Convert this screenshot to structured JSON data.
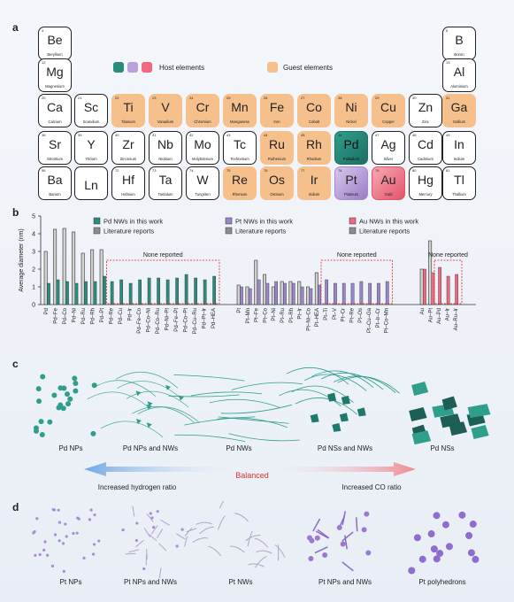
{
  "panels": {
    "a": "a",
    "b": "b",
    "c": "c",
    "d": "d"
  },
  "periodic_table": {
    "elements": [
      {
        "sym": "Be",
        "name": "Beryllium",
        "num": "4",
        "cls": ""
      },
      {
        "sym": "Mg",
        "name": "Magnesium",
        "num": "12",
        "cls": ""
      },
      {
        "sym": "Ca",
        "name": "Calcium",
        "num": "20",
        "cls": ""
      },
      {
        "sym": "Sr",
        "name": "Strontium",
        "num": "38",
        "cls": ""
      },
      {
        "sym": "Ba",
        "name": "Barium",
        "num": "56",
        "cls": ""
      },
      {
        "sym": "Sc",
        "name": "Scandium",
        "num": "21",
        "cls": ""
      },
      {
        "sym": "Y",
        "name": "Yttrium",
        "num": "39",
        "cls": ""
      },
      {
        "sym": "Ln",
        "name": "",
        "num": "",
        "cls": ""
      },
      {
        "sym": "Ti",
        "name": "Titanium",
        "num": "22",
        "cls": "guest"
      },
      {
        "sym": "Zr",
        "name": "Zirconium",
        "num": "40",
        "cls": ""
      },
      {
        "sym": "Hf",
        "name": "Hafnium",
        "num": "72",
        "cls": ""
      },
      {
        "sym": "V",
        "name": "Vanadium",
        "num": "23",
        "cls": "guest"
      },
      {
        "sym": "Nb",
        "name": "Niobium",
        "num": "41",
        "cls": ""
      },
      {
        "sym": "Ta",
        "name": "Tantalum",
        "num": "73",
        "cls": ""
      },
      {
        "sym": "Cr",
        "name": "Chromium",
        "num": "24",
        "cls": "guest"
      },
      {
        "sym": "Mo",
        "name": "Molybdenum",
        "num": "42",
        "cls": ""
      },
      {
        "sym": "W",
        "name": "Tungsten",
        "num": "74",
        "cls": ""
      },
      {
        "sym": "Mn",
        "name": "Manganese",
        "num": "25",
        "cls": "guest"
      },
      {
        "sym": "Tc",
        "name": "Technetium",
        "num": "43",
        "cls": ""
      },
      {
        "sym": "Re",
        "name": "Rhenium",
        "num": "75",
        "cls": "guest"
      },
      {
        "sym": "Fe",
        "name": "Iron",
        "num": "26",
        "cls": "guest"
      },
      {
        "sym": "Ru",
        "name": "Ruthenium",
        "num": "44",
        "cls": "guest"
      },
      {
        "sym": "Os",
        "name": "Osmium",
        "num": "76",
        "cls": "guest"
      },
      {
        "sym": "Co",
        "name": "Cobalt",
        "num": "27",
        "cls": "guest"
      },
      {
        "sym": "Rh",
        "name": "Rhodium",
        "num": "45",
        "cls": "guest"
      },
      {
        "sym": "Ir",
        "name": "Iridium",
        "num": "77",
        "cls": "guest"
      },
      {
        "sym": "Ni",
        "name": "Nickel",
        "num": "28",
        "cls": "guest"
      },
      {
        "sym": "Pd",
        "name": "Palladium",
        "num": "46",
        "cls": "host-pd"
      },
      {
        "sym": "Pt",
        "name": "Platinum",
        "num": "78",
        "cls": "host-pt"
      },
      {
        "sym": "Cu",
        "name": "Copper",
        "num": "29",
        "cls": "guest"
      },
      {
        "sym": "Ag",
        "name": "Silver",
        "num": "47",
        "cls": ""
      },
      {
        "sym": "Au",
        "name": "Gold",
        "num": "79",
        "cls": "host-au"
      },
      {
        "sym": "Zn",
        "name": "Zinc",
        "num": "30",
        "cls": ""
      },
      {
        "sym": "Cd",
        "name": "Cadmium",
        "num": "48",
        "cls": ""
      },
      {
        "sym": "Hg",
        "name": "Mercury",
        "num": "80",
        "cls": ""
      },
      {
        "sym": "B",
        "name": "Boron",
        "num": "5",
        "cls": ""
      },
      {
        "sym": "Al",
        "name": "Aluminium",
        "num": "13",
        "cls": ""
      },
      {
        "sym": "Ga",
        "name": "Gallium",
        "num": "31",
        "cls": "guest"
      },
      {
        "sym": "In",
        "name": "Indium",
        "num": "49",
        "cls": ""
      },
      {
        "sym": "Tl",
        "name": "Thallium",
        "num": "81",
        "cls": ""
      }
    ],
    "legend_host": "Host elements",
    "legend_guest": "Guest elements",
    "colors": {
      "pd": "#2a8c7c",
      "pt": "#b7a1d9",
      "au": "#ef6a7f",
      "guest": "#f5c08c"
    }
  },
  "chart_data": {
    "type": "bar",
    "ylabel": "Average diameter (nm)",
    "ylim": [
      0,
      5
    ],
    "yticks": [
      "0",
      "1",
      "2",
      "3",
      "4",
      "5"
    ],
    "legend": [
      {
        "label": "Pd NWs in this work",
        "color": "#2a8c7c"
      },
      {
        "label": "Literature reports",
        "color": "#8c8c8c"
      },
      {
        "label": "Pt NWs in this work",
        "color": "#9a86c6"
      },
      {
        "label": "Literature reports",
        "color": "#8c8c8c"
      },
      {
        "label": "Au NWs in this work",
        "color": "#ef6a7f"
      },
      {
        "label": "Literature reports",
        "color": "#8c8c8c"
      }
    ],
    "groups": [
      {
        "name": "Pd",
        "color": "#2a8c7c",
        "none_reported": "None reported",
        "categories": [
          "Pd",
          "Pd–Fe",
          "Pd–Co",
          "Pd–Ni",
          "Pd–Ru",
          "Pd–Rh",
          "Pd–Pt",
          "Pd–Re",
          "Pd–Cu",
          "Pd–Ir",
          "Pd–Fe–Co",
          "Pd–Co–Ni",
          "Pd–Co–Ru",
          "Pd–Ni–Pt",
          "Pd–Fe–Pt",
          "Pd–Co–Pt",
          "Pd–Cu–Ru",
          "Pd–Pt–Ir",
          "Pd–HEA"
        ],
        "work": [
          1.2,
          1.4,
          1.3,
          1.2,
          1.3,
          1.3,
          1.6,
          1.3,
          1.4,
          1.2,
          1.4,
          1.5,
          1.5,
          1.4,
          1.5,
          1.7,
          1.5,
          1.4,
          1.6
        ],
        "lit": [
          3.0,
          4.25,
          4.3,
          4.1,
          2.9,
          3.1,
          3.1,
          null,
          null,
          null,
          null,
          null,
          null,
          null,
          null,
          null,
          null,
          null,
          null
        ]
      },
      {
        "name": "Pt",
        "color": "#9a86c6",
        "none_reported": "None reported",
        "categories": [
          "Pt",
          "Pt–Mn",
          "Pt–Fe",
          "Pt–Co",
          "Pt–Ni",
          "Pt–Ru",
          "Pt–Rh",
          "Pt–Ir",
          "Pt–Ni–Co",
          "Pt–HEA",
          "Pt–Ti",
          "Pt–V",
          "Pt–Cr",
          "Pt–Re",
          "Pt–Os",
          "Pt–Cu–Ga",
          "Pt–Ir–Cr",
          "Pt–Co–Mn"
        ],
        "work": [
          1.0,
          0.9,
          1.4,
          1.2,
          1.3,
          1.2,
          1.2,
          1.0,
          0.9,
          1.1,
          1.4,
          1.2,
          1.2,
          1.2,
          1.3,
          1.2,
          1.2,
          1.3
        ],
        "lit": [
          1.1,
          1.0,
          2.5,
          1.7,
          1.0,
          1.3,
          1.3,
          1.3,
          1.0,
          1.8,
          null,
          null,
          null,
          null,
          null,
          null,
          null,
          null
        ]
      },
      {
        "name": "Au",
        "color": "#ef6a7f",
        "none_reported": "None reported",
        "categories": [
          "Au",
          "Au–Pt",
          "Au–Pd",
          "Au–Ir",
          "Au–Ru–Ir"
        ],
        "work": [
          2.0,
          1.8,
          2.1,
          1.6,
          1.7
        ],
        "lit": [
          2.0,
          3.6,
          null,
          null,
          null
        ]
      }
    ]
  },
  "panel_c": {
    "captions": [
      "Pd NPs",
      "Pd NPs and NWs",
      "Pd NWs",
      "Pd NSs and NWs",
      "Pd NSs"
    ],
    "arrow_left": "Increased hydrogen ratio",
    "center": "Balanced",
    "arrow_right": "Increased CO ratio"
  },
  "panel_d": {
    "captions": [
      "Pt NPs",
      "Pt NPs and NWs",
      "Pt NWs",
      "Pt NPs and NWs",
      "Pt polyhedrons"
    ]
  }
}
